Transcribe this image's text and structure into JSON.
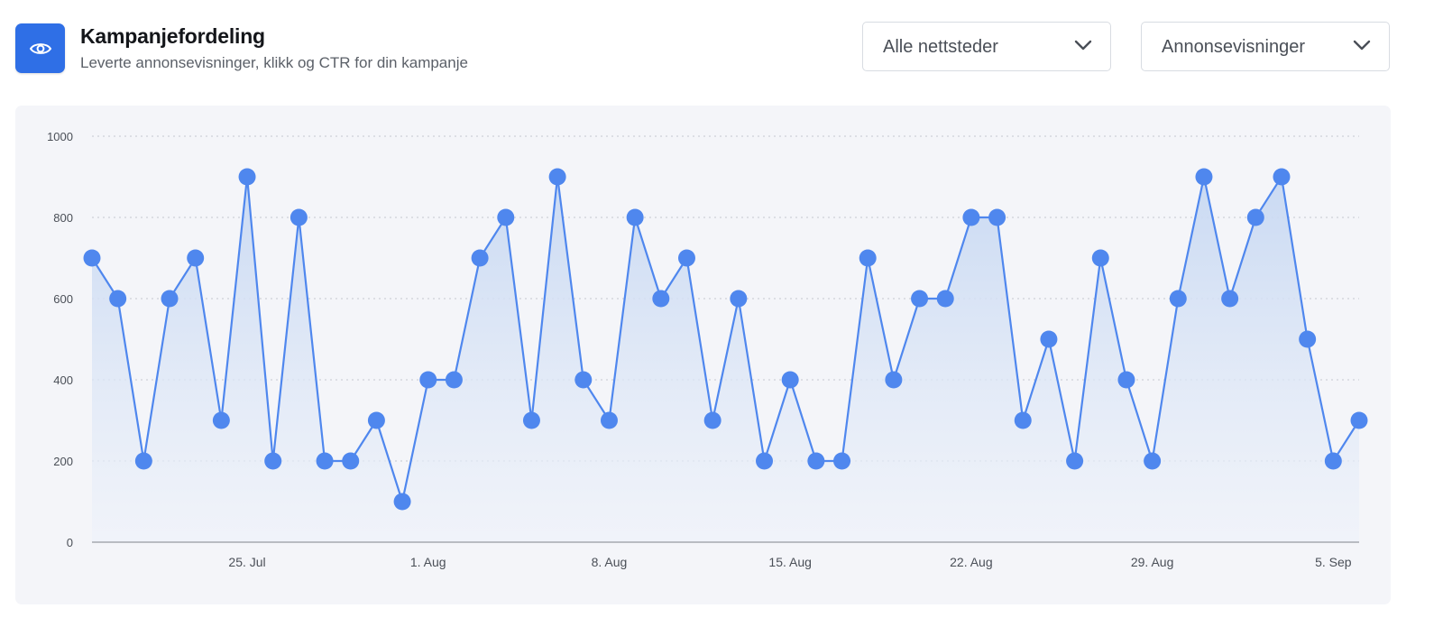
{
  "header": {
    "icon": "eye-icon",
    "title": "Kampanjefordeling",
    "subtitle": "Leverte annonsevisninger, klikk og CTR for din kampanje"
  },
  "filters": {
    "sites_label": "Alle nettsteder",
    "metric_label": "Annonsevisninger"
  },
  "colors": {
    "accent": "#2f6fe6",
    "line": "#4f87ee",
    "point": "#4f87ee",
    "area_top": "#c7d8f2",
    "panel": "#f4f5f9"
  },
  "chart_data": {
    "type": "area",
    "title": "",
    "xlabel": "",
    "ylabel": "",
    "ylim": [
      0,
      1000
    ],
    "yticks": [
      0,
      200,
      400,
      600,
      800,
      1000
    ],
    "grid": true,
    "legend": "none",
    "x_tick_labels": [
      {
        "label": "25. Jul",
        "index": 6
      },
      {
        "label": "1. Aug",
        "index": 13
      },
      {
        "label": "8. Aug",
        "index": 20
      },
      {
        "label": "15. Aug",
        "index": 27
      },
      {
        "label": "22. Aug",
        "index": 34
      },
      {
        "label": "29. Aug",
        "index": 41
      },
      {
        "label": "5. Sep",
        "index": 48
      }
    ],
    "x": [
      "19. Jul",
      "20. Jul",
      "21. Jul",
      "22. Jul",
      "23. Jul",
      "24. Jul",
      "25. Jul",
      "26. Jul",
      "27. Jul",
      "28. Jul",
      "29. Jul",
      "30. Jul",
      "31. Jul",
      "1. Aug",
      "2. Aug",
      "3. Aug",
      "4. Aug",
      "5. Aug",
      "6. Aug",
      "7. Aug",
      "8. Aug",
      "9. Aug",
      "10. Aug",
      "11. Aug",
      "12. Aug",
      "13. Aug",
      "14. Aug",
      "15. Aug",
      "16. Aug",
      "17. Aug",
      "18. Aug",
      "19. Aug",
      "20. Aug",
      "21. Aug",
      "22. Aug",
      "23. Aug",
      "24. Aug",
      "25. Aug",
      "26. Aug",
      "27. Aug",
      "28. Aug",
      "29. Aug",
      "30. Aug",
      "31. Aug",
      "1. Sep",
      "2. Sep",
      "3. Sep",
      "4. Sep",
      "5. Sep",
      "6. Sep"
    ],
    "series": [
      {
        "values": [
          700,
          600,
          200,
          600,
          700,
          300,
          900,
          200,
          800,
          200,
          200,
          300,
          100,
          400,
          400,
          700,
          800,
          300,
          900,
          400,
          300,
          800,
          600,
          700,
          300,
          600,
          200,
          400,
          200,
          200,
          700,
          400,
          600,
          600,
          800,
          800,
          300,
          500,
          200,
          700,
          400,
          200,
          600,
          900,
          600,
          800,
          900,
          500,
          200,
          300
        ]
      }
    ]
  }
}
